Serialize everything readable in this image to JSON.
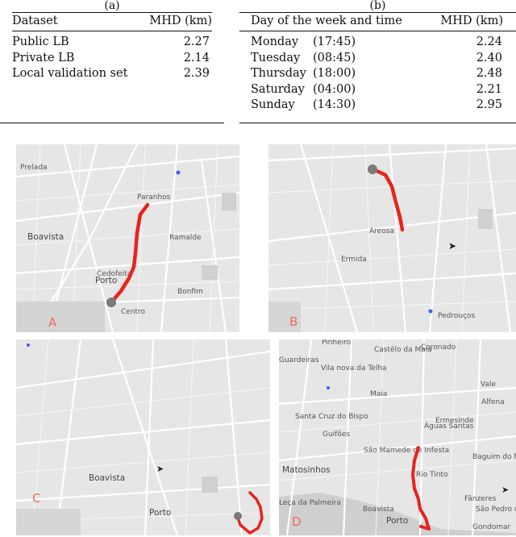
{
  "table_a": {
    "caption": "(a)",
    "columns": [
      "Dataset",
      "MHD (km)"
    ],
    "rows": [
      {
        "label": "Public LB",
        "value": "2.27"
      },
      {
        "label": "Private LB",
        "value": "2.14"
      },
      {
        "label": "Local validation set",
        "value": "2.39"
      }
    ]
  },
  "table_b": {
    "caption": "(b)",
    "columns": [
      "Day of the week and time",
      "MHD (km)"
    ],
    "rows": [
      {
        "day": "Monday",
        "time": "(17:45)",
        "value": "2.24"
      },
      {
        "day": "Tuesday",
        "time": "(08:45)",
        "value": "2.40"
      },
      {
        "day": "Thursday",
        "time": "(18:00)",
        "value": "2.48"
      },
      {
        "day": "Saturday",
        "time": "(04:00)",
        "value": "2.21"
      },
      {
        "day": "Sunday",
        "time": "(14:30)",
        "value": "2.95"
      }
    ]
  },
  "maps": {
    "a": {
      "label": "A",
      "places": [
        "Boavista",
        "Porto",
        "Paranhos",
        "Prelada",
        "Cedofeita",
        "Centro",
        "Ramalde",
        "Bonfim"
      ]
    },
    "b": {
      "label": "B",
      "places": [
        "Areosa",
        "Ermida",
        "Pedrouços"
      ]
    },
    "c": {
      "label": "C",
      "places": [
        "Boavista",
        "Porto"
      ]
    },
    "d": {
      "label": "D",
      "places": [
        "Pinheiro",
        "Castêlo da Maia",
        "Coronado",
        "Vila nova da Telha",
        "Maia",
        "Vale",
        "Alfena",
        "Santa Cruz do Bispo",
        "Ermesinde",
        "Águas Santas",
        "Guifões",
        "São Mamede de Infesta",
        "Matosinhos",
        "Rio Tinto",
        "Baguim do Monte",
        "Boavista",
        "Porto",
        "Fânzeres",
        "São Pedro da Cova",
        "Gondomar",
        "Leça da Palmeira",
        "Guardeiras"
      ]
    }
  },
  "colors": {
    "trajectory": "#e8231d",
    "label": "#f06a5a",
    "destination": "#3b5bff"
  }
}
